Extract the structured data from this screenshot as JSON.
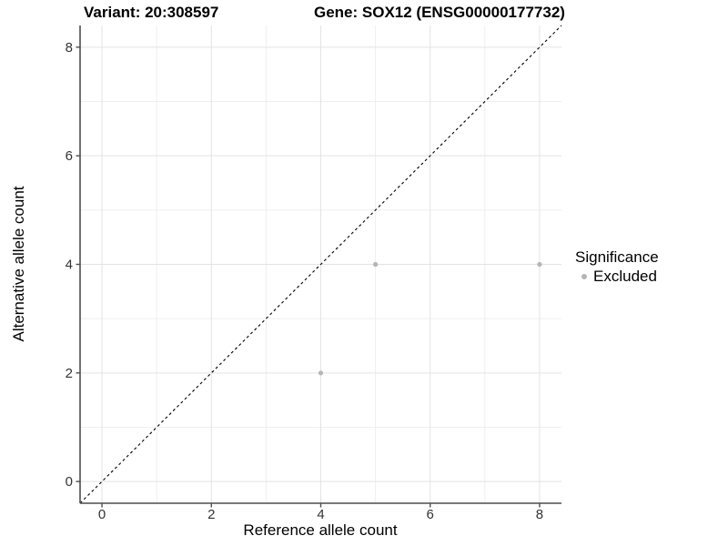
{
  "chart_data": {
    "type": "scatter",
    "titles": {
      "variant": "Variant: 20:308597",
      "gene": "Gene: SOX12 (ENSG00000177732)"
    },
    "xlabel": "Reference allele count",
    "ylabel": "Alternative allele count",
    "xlim": [
      -0.4,
      8.4
    ],
    "ylim": [
      -0.4,
      8.4
    ],
    "xticks": [
      0,
      2,
      4,
      6,
      8
    ],
    "yticks": [
      0,
      2,
      4,
      6,
      8
    ],
    "xminor": [
      1,
      3,
      5,
      7
    ],
    "yminor": [
      1,
      3,
      5,
      7
    ],
    "grid": true,
    "series": [
      {
        "name": "Excluded",
        "points": [
          {
            "x": 4,
            "y": 2
          },
          {
            "x": 5,
            "y": 4
          },
          {
            "x": 8,
            "y": 4
          }
        ]
      }
    ],
    "identity_line": {
      "style": "dashed",
      "slope": 1,
      "intercept": 0
    },
    "legend": {
      "title": "Significance",
      "position": "right",
      "entries": [
        {
          "label": "Excluded",
          "color": "#b5b5b5"
        }
      ]
    },
    "style": {
      "point_color": "#b5b5b5",
      "grid_major_color": "#e3e3e3",
      "grid_minor_color": "#efefef",
      "axis_line_color": "#4d4d4d",
      "tick_label_color": "#333333",
      "identity_line_color": "#000000",
      "background": "#ffffff"
    }
  }
}
